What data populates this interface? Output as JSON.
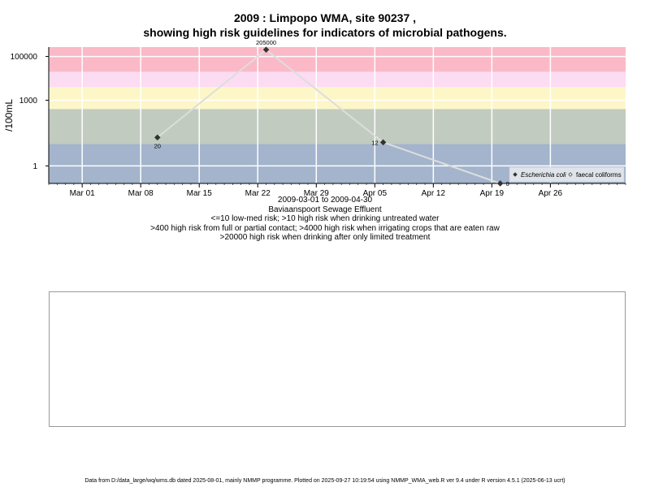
{
  "chart_data": {
    "type": "scatter",
    "title": "2009 : Limpopo WMA, site 90237 ,",
    "subtitle": "showing high risk guidelines for indicators of microbial pathogens.",
    "ylabel": "/100mL",
    "y_scale": "log10",
    "y_ticks": [
      "1",
      "1000",
      "100000"
    ],
    "x_tick_labels": [
      "Mar 01",
      "Mar 08",
      "Mar 15",
      "Mar 22",
      "Mar 29",
      "Apr 05",
      "Apr 12",
      "Apr 19",
      "Apr 26"
    ],
    "x_tick_dates": [
      "2009-03-01",
      "2009-03-08",
      "2009-03-15",
      "2009-03-22",
      "2009-03-29",
      "2009-04-05",
      "2009-04-12",
      "2009-04-19",
      "2009-04-26"
    ],
    "grid": true,
    "legend_position": "bottom-right",
    "bands": [
      {
        "from": 0,
        "to": 10,
        "color": "#a3b4cc"
      },
      {
        "from": 10,
        "to": 400,
        "color": "#c2cbc0"
      },
      {
        "from": 400,
        "to": 4000,
        "color": "#fdf7c8"
      },
      {
        "from": 4000,
        "to": 20000,
        "color": "#fcdcf2"
      },
      {
        "from": 20000,
        "to": 1000000,
        "color": "#fbb9c7"
      }
    ],
    "series": [
      {
        "name": "Escherichia coli",
        "marker": "filled-diamond",
        "color": "#dddddd",
        "points": [
          {
            "x": "2009-03-10",
            "y": 20,
            "label": "20"
          },
          {
            "x": "2009-03-23",
            "y": 205000,
            "label": "205000"
          },
          {
            "x": "2009-04-06",
            "y": 12,
            "label": "12"
          },
          {
            "x": "2009-04-20",
            "y": 0,
            "label": "0"
          }
        ]
      },
      {
        "name": "faecal coliforms",
        "marker": "open-diamond",
        "color": "#dddddd",
        "points": []
      }
    ]
  },
  "captions": {
    "date_range": "2009-03-01 to 2009-04-30",
    "site_name": "Baviaanspoort Sewage Effluent",
    "guideline_1": "<=10 low-med risk; >10 high risk when drinking untreated water",
    "guideline_2": ">400 high risk from full or partial contact; >4000 high risk when irrigating crops that are eaten raw",
    "guideline_3": ">20000 high risk when drinking after only limited treatment"
  },
  "footer": "Data from D:/data_large/wq/wms.db dated 2025-08-01, mainly NMMP programme. Plotted on 2025-09-27 10:19:54 using NMMP_WMA_web.R ver 9.4 under R version 4.5.1 (2025-06-13 ucrt)"
}
